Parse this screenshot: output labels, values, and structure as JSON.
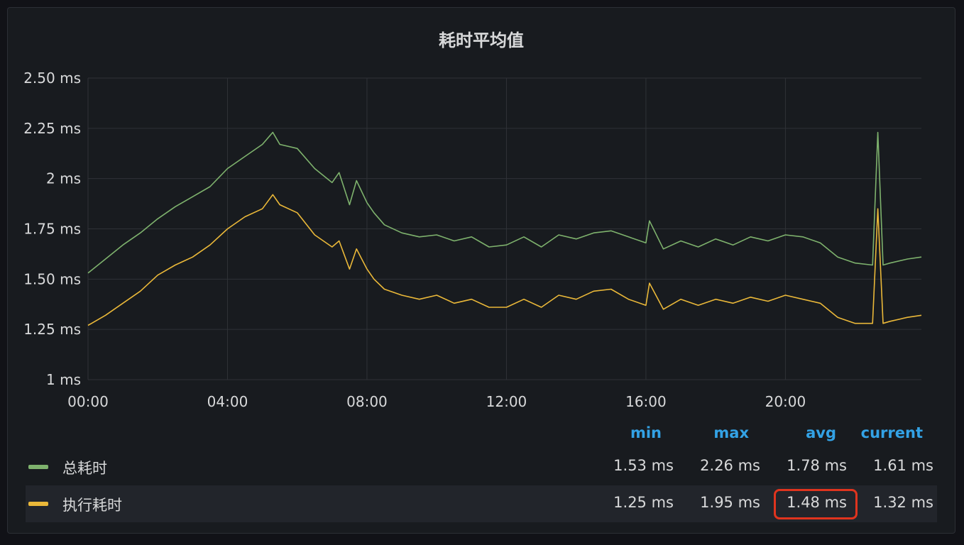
{
  "chart_data": {
    "type": "line",
    "title": "耗时平均值",
    "y_ticks": [
      "1 ms",
      "1.25 ms",
      "1.50 ms",
      "1.75 ms",
      "2 ms",
      "2.25 ms",
      "2.50 ms"
    ],
    "ylim": [
      1.0,
      2.5
    ],
    "x_ticks": [
      "00:00",
      "04:00",
      "08:00",
      "12:00",
      "16:00",
      "20:00"
    ],
    "xlim": [
      0,
      23.9
    ],
    "grid": true,
    "series": [
      {
        "name": "总耗时",
        "color": "#7eb26d",
        "x": [
          0,
          0.5,
          1,
          1.5,
          2,
          2.5,
          3,
          3.5,
          4,
          4.5,
          5,
          5.3,
          5.5,
          6,
          6.5,
          7,
          7.2,
          7.5,
          7.7,
          8,
          8.2,
          8.5,
          9,
          9.5,
          10,
          10.5,
          11,
          11.5,
          12,
          12.5,
          13,
          13.5,
          14,
          14.5,
          15,
          15.5,
          16,
          16.1,
          16.5,
          17,
          17.5,
          18,
          18.5,
          19,
          19.5,
          20,
          20.5,
          21,
          21.5,
          22,
          22.5,
          22.65,
          22.8,
          23,
          23.5,
          23.9
        ],
        "y": [
          1.53,
          1.6,
          1.67,
          1.73,
          1.8,
          1.86,
          1.91,
          1.96,
          2.05,
          2.11,
          2.17,
          2.23,
          2.17,
          2.15,
          2.05,
          1.98,
          2.03,
          1.87,
          1.99,
          1.88,
          1.83,
          1.77,
          1.73,
          1.71,
          1.72,
          1.69,
          1.71,
          1.66,
          1.67,
          1.71,
          1.66,
          1.72,
          1.7,
          1.73,
          1.74,
          1.71,
          1.68,
          1.79,
          1.65,
          1.69,
          1.66,
          1.7,
          1.67,
          1.71,
          1.69,
          1.72,
          1.71,
          1.68,
          1.61,
          1.58,
          1.57,
          2.23,
          1.57,
          1.58,
          1.6,
          1.61
        ]
      },
      {
        "name": "执行耗时",
        "color": "#eab839",
        "x": [
          0,
          0.5,
          1,
          1.5,
          2,
          2.5,
          3,
          3.5,
          4,
          4.5,
          5,
          5.3,
          5.5,
          6,
          6.5,
          7,
          7.2,
          7.5,
          7.7,
          8,
          8.2,
          8.5,
          9,
          9.5,
          10,
          10.5,
          11,
          11.5,
          12,
          12.5,
          13,
          13.5,
          14,
          14.5,
          15,
          15.5,
          16,
          16.1,
          16.5,
          17,
          17.5,
          18,
          18.5,
          19,
          19.5,
          20,
          20.5,
          21,
          21.5,
          22,
          22.5,
          22.65,
          22.8,
          23,
          23.5,
          23.9
        ],
        "y": [
          1.27,
          1.32,
          1.38,
          1.44,
          1.52,
          1.57,
          1.61,
          1.67,
          1.75,
          1.81,
          1.85,
          1.92,
          1.87,
          1.83,
          1.72,
          1.66,
          1.69,
          1.55,
          1.65,
          1.55,
          1.5,
          1.45,
          1.42,
          1.4,
          1.42,
          1.38,
          1.4,
          1.36,
          1.36,
          1.4,
          1.36,
          1.42,
          1.4,
          1.44,
          1.45,
          1.4,
          1.37,
          1.48,
          1.35,
          1.4,
          1.37,
          1.4,
          1.38,
          1.41,
          1.39,
          1.42,
          1.4,
          1.38,
          1.31,
          1.28,
          1.28,
          1.85,
          1.28,
          1.29,
          1.31,
          1.32
        ]
      }
    ]
  },
  "legend": {
    "headers": {
      "min": "min",
      "max": "max",
      "avg": "avg",
      "current": "current"
    },
    "rows": [
      {
        "name": "总耗时",
        "color": "#7eb26d",
        "min": "1.53 ms",
        "max": "2.26 ms",
        "avg": "1.78 ms",
        "current": "1.61 ms"
      },
      {
        "name": "执行耗时",
        "color": "#eab839",
        "min": "1.25 ms",
        "max": "1.95 ms",
        "avg": "1.48 ms",
        "current": "1.32 ms"
      }
    ]
  }
}
